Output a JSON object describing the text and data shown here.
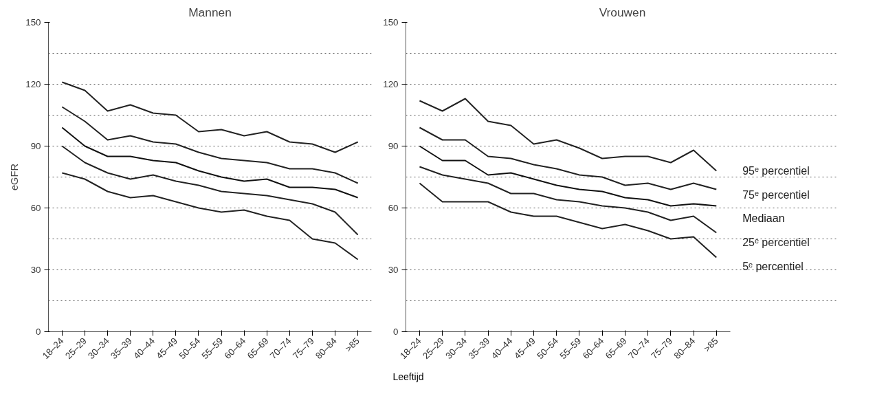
{
  "chart_data": [
    {
      "type": "line",
      "title": "Mannen",
      "ylabel": "eGFR",
      "xlabel": "Leeftijd",
      "categories": [
        "18–24",
        "25–29",
        "30–34",
        "35–39",
        "40–44",
        "45–49",
        "50–54",
        "55–59",
        "60–64",
        "65–69",
        "70–74",
        "75–79",
        "80–84",
        ">85"
      ],
      "ylim": [
        0,
        150
      ],
      "yticks": [
        0,
        {
          "value": 15,
          "label": null
        },
        30,
        {
          "value": 45,
          "label": null
        },
        60,
        {
          "value": 75,
          "label": null
        },
        90,
        {
          "value": 105,
          "label": null
        },
        120,
        {
          "value": 135,
          "label": null
        },
        150
      ],
      "grid": "y",
      "legend": false,
      "line_style": "solid",
      "series": [
        {
          "color": "#222222",
          "values": [
            121,
            117,
            107,
            110,
            106,
            105,
            97,
            98,
            95,
            97,
            92,
            91,
            87,
            92
          ]
        },
        {
          "color": "#222222",
          "values": [
            109,
            102,
            93,
            95,
            92,
            91,
            87,
            84,
            83,
            82,
            79,
            79,
            77,
            72
          ]
        },
        {
          "color": "#111111",
          "values": [
            99,
            90,
            85,
            85,
            83,
            82,
            78,
            75,
            73,
            74,
            70,
            70,
            69,
            65
          ]
        },
        {
          "color": "#222222",
          "values": [
            90,
            82,
            77,
            74,
            76,
            73,
            71,
            68,
            67,
            66,
            64,
            62,
            58,
            47
          ]
        },
        {
          "color": "#222222",
          "values": [
            77,
            74,
            68,
            65,
            66,
            63,
            60,
            58,
            59,
            56,
            54,
            45,
            43,
            35
          ]
        }
      ]
    },
    {
      "type": "line",
      "title": "Vrouwen",
      "categories": [
        "18–24",
        "25–29",
        "30–34",
        "35–39",
        "40–44",
        "45–49",
        "50–54",
        "55–59",
        "60–64",
        "65–69",
        "70–74",
        "75–79",
        "80–84",
        ">85"
      ],
      "ylim": [
        0,
        150
      ],
      "yticks": [
        0,
        {
          "value": 15,
          "label": null
        },
        30,
        {
          "value": 45,
          "label": null
        },
        60,
        {
          "value": 75,
          "label": null
        },
        90,
        {
          "value": 105,
          "label": null
        },
        120,
        {
          "value": 135,
          "label": null
        },
        150
      ],
      "grid": "y",
      "legend": false,
      "line_style": "solid",
      "series": [
        {
          "name": "95ᵉ percentiel",
          "color": "#222222",
          "values": [
            112,
            107,
            113,
            102,
            100,
            91,
            93,
            89,
            84,
            85,
            85,
            82,
            88,
            78
          ]
        },
        {
          "name": "75ᵉ percentiel",
          "color": "#222222",
          "values": [
            99,
            93,
            93,
            85,
            84,
            81,
            79,
            76,
            75,
            71,
            72,
            69,
            72,
            69
          ]
        },
        {
          "name": "Mediaan",
          "color": "#111111",
          "values": [
            90,
            83,
            83,
            76,
            77,
            74,
            71,
            69,
            68,
            65,
            64,
            61,
            62,
            61
          ]
        },
        {
          "name": "25ᵉ percentiel",
          "color": "#222222",
          "values": [
            80,
            76,
            74,
            72,
            67,
            67,
            64,
            63,
            61,
            60,
            58,
            54,
            56,
            48
          ]
        },
        {
          "name": "5ᵉ percentiel",
          "color": "#222222",
          "values": [
            72,
            63,
            63,
            63,
            58,
            56,
            56,
            53,
            50,
            52,
            49,
            45,
            46,
            36
          ]
        }
      ]
    }
  ]
}
